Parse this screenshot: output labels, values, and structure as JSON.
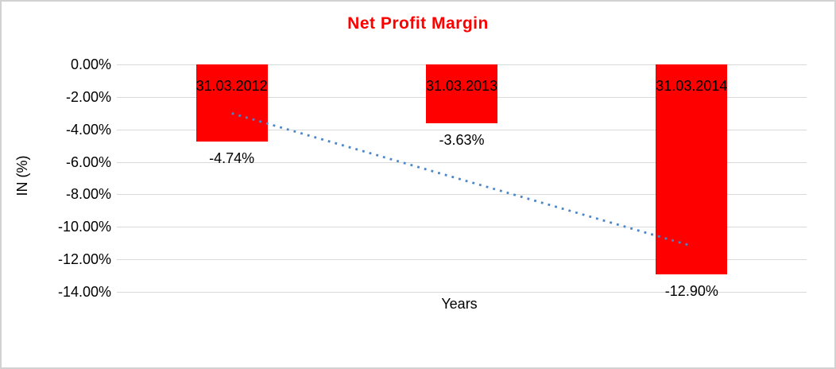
{
  "chart_data": {
    "type": "bar",
    "title": "Net Profit Margin",
    "categories": [
      "31.03.2012",
      "31.03.2013",
      "31.03.2014"
    ],
    "values": [
      -4.74,
      -3.63,
      -12.9
    ],
    "value_labels": [
      "-4.74%",
      "-3.63%",
      "-12.90%"
    ],
    "xlabel": "Years",
    "ylabel": "IN (%)",
    "ylim": [
      -14,
      0
    ],
    "ytick_step": 2,
    "ytick_labels": [
      "0.00%",
      "-2.00%",
      "-4.00%",
      "-6.00%",
      "-8.00%",
      "-10.00%",
      "-12.00%",
      "-14.00%"
    ],
    "grid": true,
    "legend_position": "none",
    "bar_color": "#FF0000",
    "title_color": "#FF0000",
    "trendline": {
      "type": "linear",
      "style": "dotted",
      "color": "#4A86C8",
      "start_pct": -3.01,
      "end_pct": -11.17
    }
  },
  "colors": {
    "gridline": "#D9D9D9",
    "frame_border": "#D2D2D2",
    "text": "#000000",
    "background": "#FFFFFF"
  }
}
